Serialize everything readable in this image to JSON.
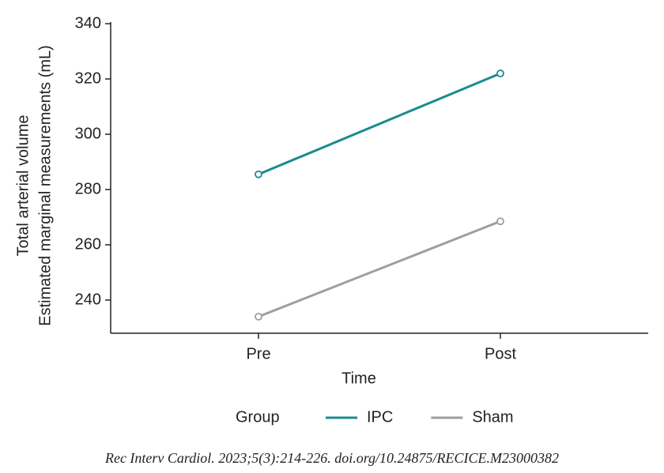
{
  "chart_data": {
    "type": "line",
    "y_label": [
      "Total arterial volume",
      "Estimated marginal measurements (mL)"
    ],
    "x_label": "Time",
    "categories": [
      "Pre",
      "Post"
    ],
    "series": [
      {
        "name": "IPC",
        "color": "#1a8b8f",
        "values": [
          285.5,
          322
        ]
      },
      {
        "name": "Sham",
        "color": "#9e9e9e",
        "values": [
          234,
          268.5
        ]
      }
    ],
    "ylim": [
      228,
      340
    ],
    "yticks": [
      240,
      260,
      280,
      300,
      320,
      340
    ],
    "legend_title": "Group",
    "caption": "Rec Interv Cardiol. 2023;5(3):214-226. doi.org/10.24875/RECICE.M23000382"
  }
}
